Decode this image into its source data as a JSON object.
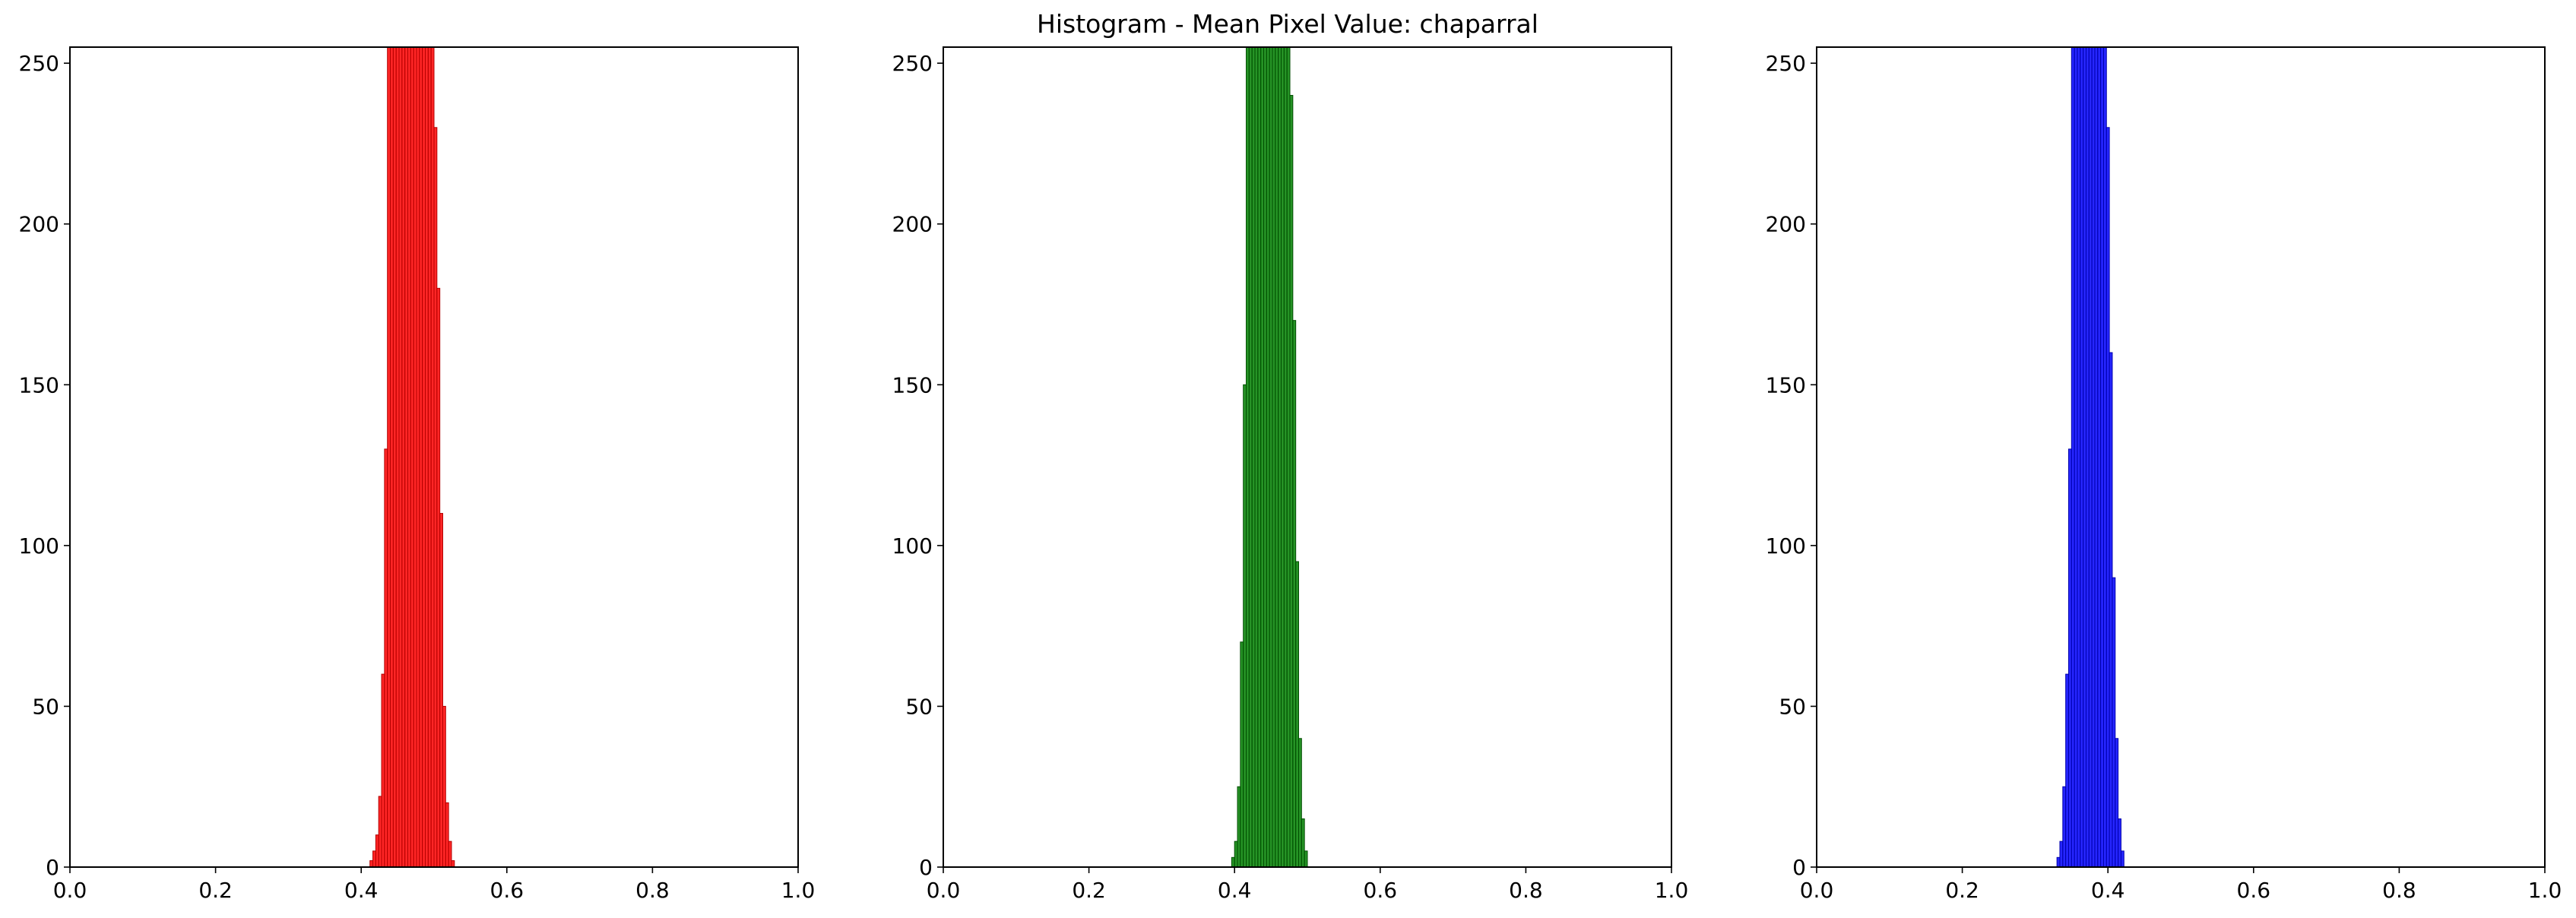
{
  "chart_data": {
    "type": "bar",
    "title": "Histogram - Mean Pixel Value:  chaparral",
    "panels": [
      {
        "name": "red",
        "color": "#ff0000",
        "edge_color": "#b20000",
        "xlim": [
          0,
          1
        ],
        "ylim": [
          0,
          255
        ],
        "xticks": [
          0.0,
          0.2,
          0.4,
          0.6,
          0.8,
          1.0
        ],
        "xtick_labels": [
          "0.0",
          "0.2",
          "0.4",
          "0.6",
          "0.8",
          "1.0"
        ],
        "yticks": [
          0,
          50,
          100,
          150,
          200,
          250
        ],
        "ytick_labels": [
          "0",
          "50",
          "100",
          "150",
          "200",
          "250"
        ],
        "bins": [
          [
            0.412,
            2
          ],
          [
            0.416,
            5
          ],
          [
            0.42,
            10
          ],
          [
            0.424,
            22
          ],
          [
            0.428,
            60
          ],
          [
            0.432,
            130
          ],
          [
            0.436,
            255
          ],
          [
            0.44,
            255
          ],
          [
            0.444,
            255
          ],
          [
            0.448,
            255
          ],
          [
            0.452,
            255
          ],
          [
            0.456,
            255
          ],
          [
            0.46,
            255
          ],
          [
            0.464,
            255
          ],
          [
            0.468,
            255
          ],
          [
            0.472,
            255
          ],
          [
            0.476,
            255
          ],
          [
            0.48,
            255
          ],
          [
            0.484,
            255
          ],
          [
            0.488,
            255
          ],
          [
            0.492,
            255
          ],
          [
            0.496,
            255
          ],
          [
            0.5,
            230
          ],
          [
            0.504,
            180
          ],
          [
            0.508,
            110
          ],
          [
            0.512,
            50
          ],
          [
            0.516,
            20
          ],
          [
            0.52,
            8
          ],
          [
            0.524,
            2
          ]
        ]
      },
      {
        "name": "green",
        "color": "#008000",
        "edge_color": "#004d00",
        "xlim": [
          0,
          1
        ],
        "ylim": [
          0,
          255
        ],
        "xticks": [
          0.0,
          0.2,
          0.4,
          0.6,
          0.8,
          1.0
        ],
        "xtick_labels": [
          "0.0",
          "0.2",
          "0.4",
          "0.6",
          "0.8",
          "1.0"
        ],
        "yticks": [
          0,
          50,
          100,
          150,
          200,
          250
        ],
        "ytick_labels": [
          "0",
          "50",
          "100",
          "150",
          "200",
          "250"
        ],
        "bins": [
          [
            0.396,
            3
          ],
          [
            0.4,
            8
          ],
          [
            0.404,
            25
          ],
          [
            0.408,
            70
          ],
          [
            0.412,
            150
          ],
          [
            0.416,
            255
          ],
          [
            0.42,
            255
          ],
          [
            0.424,
            255
          ],
          [
            0.428,
            255
          ],
          [
            0.432,
            255
          ],
          [
            0.436,
            255
          ],
          [
            0.44,
            255
          ],
          [
            0.444,
            255
          ],
          [
            0.448,
            255
          ],
          [
            0.452,
            255
          ],
          [
            0.456,
            255
          ],
          [
            0.46,
            255
          ],
          [
            0.464,
            255
          ],
          [
            0.468,
            255
          ],
          [
            0.472,
            255
          ],
          [
            0.476,
            240
          ],
          [
            0.48,
            170
          ],
          [
            0.484,
            95
          ],
          [
            0.488,
            40
          ],
          [
            0.492,
            15
          ],
          [
            0.496,
            5
          ]
        ]
      },
      {
        "name": "blue",
        "color": "#0000ff",
        "edge_color": "#0000aa",
        "xlim": [
          0,
          1
        ],
        "ylim": [
          0,
          255
        ],
        "xticks": [
          0.0,
          0.2,
          0.4,
          0.6,
          0.8,
          1.0
        ],
        "xtick_labels": [
          "0.0",
          "0.2",
          "0.4",
          "0.6",
          "0.8",
          "1.0"
        ],
        "yticks": [
          0,
          50,
          100,
          150,
          200,
          250
        ],
        "ytick_labels": [
          "0",
          "50",
          "100",
          "150",
          "200",
          "250"
        ],
        "bins": [
          [
            0.33,
            3
          ],
          [
            0.334,
            8
          ],
          [
            0.338,
            25
          ],
          [
            0.342,
            60
          ],
          [
            0.346,
            130
          ],
          [
            0.35,
            255
          ],
          [
            0.354,
            255
          ],
          [
            0.358,
            255
          ],
          [
            0.362,
            255
          ],
          [
            0.366,
            255
          ],
          [
            0.37,
            255
          ],
          [
            0.374,
            255
          ],
          [
            0.378,
            255
          ],
          [
            0.382,
            255
          ],
          [
            0.386,
            255
          ],
          [
            0.39,
            255
          ],
          [
            0.394,
            255
          ],
          [
            0.398,
            230
          ],
          [
            0.402,
            160
          ],
          [
            0.406,
            90
          ],
          [
            0.41,
            40
          ],
          [
            0.414,
            15
          ],
          [
            0.418,
            5
          ]
        ]
      }
    ]
  }
}
